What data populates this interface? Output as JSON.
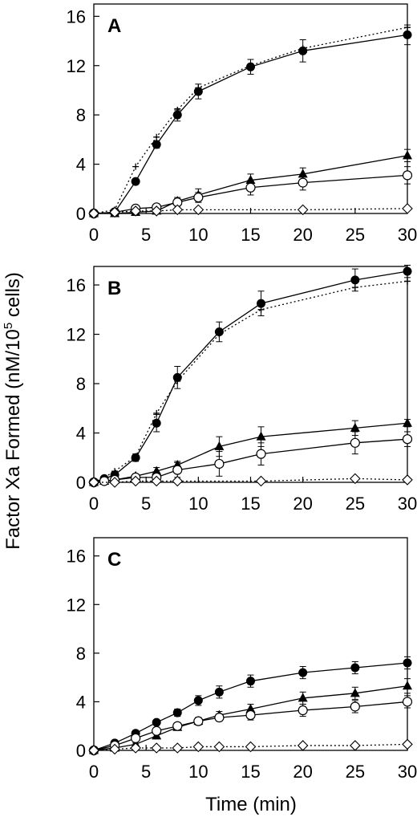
{
  "figure": {
    "ylabel_main": "Factor Xa Formed (nM/10",
    "ylabel_sup": "5",
    "ylabel_tail": " cells)",
    "xlabel": "Time (min)"
  },
  "chart_data": [
    {
      "type": "line",
      "panel": "A",
      "xlabel": "Time (min)",
      "ylabel": "Factor Xa Formed (nM/10^5 cells)",
      "xlim": [
        0,
        30
      ],
      "ylim": [
        0,
        17
      ],
      "xticks": [
        0,
        5,
        10,
        15,
        20,
        25,
        30
      ],
      "yticks": [
        0,
        4,
        8,
        12,
        16
      ],
      "grid": false,
      "series": [
        {
          "marker": "filled-circle",
          "line": "solid",
          "x": [
            0,
            2,
            4,
            6,
            8,
            10,
            15,
            20,
            30
          ],
          "y": [
            0,
            0.1,
            2.6,
            5.6,
            8.0,
            9.9,
            11.9,
            13.2,
            14.5
          ],
          "err": [
            0,
            0.1,
            0.2,
            0.3,
            0.5,
            0.6,
            0.6,
            0.9,
            0.8
          ]
        },
        {
          "marker": "plus",
          "line": "dotted",
          "x": [
            0,
            2,
            4,
            6,
            8,
            10,
            15,
            20,
            30
          ],
          "y": [
            0,
            0.3,
            3.8,
            6.2,
            8.4,
            10.2,
            12.0,
            13.4,
            15.1
          ],
          "err": [
            0,
            0,
            0,
            0,
            0,
            0,
            0,
            0,
            0
          ]
        },
        {
          "marker": "filled-triangle",
          "line": "solid",
          "x": [
            0,
            2,
            4,
            6,
            8,
            10,
            15,
            20,
            30
          ],
          "y": [
            0,
            0,
            0.1,
            0.2,
            1.0,
            1.5,
            2.7,
            3.2,
            4.7
          ],
          "err": [
            0,
            0,
            0,
            0.1,
            0.3,
            0.5,
            0.5,
            0.5,
            0.5
          ]
        },
        {
          "marker": "open-circle",
          "line": "solid",
          "x": [
            0,
            2,
            4,
            6,
            8,
            10,
            15,
            20,
            30
          ],
          "y": [
            0,
            0.1,
            0.4,
            0.5,
            0.9,
            1.3,
            2.1,
            2.5,
            3.1
          ],
          "err": [
            0,
            0,
            0,
            0.2,
            0.3,
            0.4,
            0.6,
            0.6,
            0.7
          ]
        },
        {
          "marker": "open-diamond",
          "line": "dotted",
          "x": [
            0,
            2,
            4,
            6,
            8,
            10,
            20,
            30
          ],
          "y": [
            0,
            0.1,
            0.2,
            0.2,
            0.3,
            0.3,
            0.3,
            0.4
          ],
          "err": [
            0,
            0,
            0,
            0,
            0,
            0,
            0,
            0
          ]
        }
      ]
    },
    {
      "type": "line",
      "panel": "B",
      "xlabel": "Time (min)",
      "ylabel": "Factor Xa Formed (nM/10^5 cells)",
      "xlim": [
        0,
        30
      ],
      "ylim": [
        0,
        17.5
      ],
      "xticks": [
        0,
        5,
        10,
        15,
        20,
        25,
        30
      ],
      "yticks": [
        0,
        4,
        8,
        12,
        16
      ],
      "grid": false,
      "series": [
        {
          "marker": "filled-circle",
          "line": "solid",
          "x": [
            0,
            1,
            2,
            4,
            6,
            8,
            12,
            16,
            25,
            30
          ],
          "y": [
            0,
            0.3,
            0.6,
            2.0,
            4.8,
            8.5,
            12.2,
            14.5,
            16.4,
            17.1
          ],
          "err": [
            0,
            0,
            0.2,
            0.3,
            0.7,
            0.9,
            0.8,
            1.0,
            0.9,
            0.5
          ]
        },
        {
          "marker": "plus",
          "line": "dotted",
          "x": [
            0,
            1,
            2,
            4,
            6,
            8,
            12,
            16,
            25,
            30
          ],
          "y": [
            0,
            0.4,
            0.9,
            2.1,
            5.6,
            8.2,
            12.0,
            14.0,
            15.8,
            16.3
          ],
          "err": [
            0,
            0,
            0,
            0,
            0,
            0,
            0,
            0,
            0,
            0
          ]
        },
        {
          "marker": "filled-triangle",
          "line": "solid",
          "x": [
            0,
            1,
            2,
            4,
            6,
            8,
            12,
            16,
            25,
            30
          ],
          "y": [
            0,
            0.1,
            0.2,
            0.5,
            0.9,
            1.4,
            2.9,
            3.7,
            4.4,
            4.8
          ],
          "err": [
            0,
            0,
            0,
            0.1,
            0.3,
            0.3,
            0.8,
            0.8,
            0.6,
            0.3
          ]
        },
        {
          "marker": "open-circle",
          "line": "solid",
          "x": [
            0,
            1,
            2,
            4,
            6,
            8,
            12,
            16,
            25,
            30
          ],
          "y": [
            0,
            0.1,
            0.2,
            0.4,
            0.4,
            1.0,
            1.5,
            2.3,
            3.2,
            3.5
          ],
          "err": [
            0,
            0,
            0,
            0.1,
            0.4,
            0.6,
            1.0,
            0.9,
            0.9,
            0.6
          ]
        },
        {
          "marker": "open-diamond",
          "line": "dotted",
          "x": [
            0,
            2,
            4,
            6,
            8,
            16,
            25,
            30
          ],
          "y": [
            0,
            0,
            0.1,
            0.1,
            0.1,
            0.1,
            0.3,
            0.2
          ],
          "err": [
            0,
            0,
            0,
            0,
            0,
            0,
            0,
            0
          ]
        }
      ]
    },
    {
      "type": "line",
      "panel": "C",
      "xlabel": "Time (min)",
      "ylabel": "Factor Xa Formed (nM/10^5 cells)",
      "xlim": [
        0,
        30
      ],
      "ylim": [
        0,
        17.5
      ],
      "xticks": [
        0,
        5,
        10,
        15,
        20,
        25,
        30
      ],
      "yticks": [
        0,
        4,
        8,
        12,
        16
      ],
      "grid": false,
      "series": [
        {
          "marker": "filled-circle",
          "line": "solid",
          "x": [
            0,
            2,
            4,
            6,
            8,
            10,
            12,
            15,
            20,
            25,
            30
          ],
          "y": [
            0,
            0.6,
            1.4,
            2.3,
            3.1,
            4.1,
            4.8,
            5.7,
            6.4,
            6.8,
            7.2
          ],
          "err": [
            0,
            0.1,
            0.2,
            0.2,
            0.3,
            0.4,
            0.5,
            0.5,
            0.5,
            0.5,
            0.5
          ]
        },
        {
          "marker": "filled-triangle",
          "line": "solid",
          "x": [
            0,
            2,
            4,
            6,
            8,
            10,
            12,
            15,
            20,
            25,
            30
          ],
          "y": [
            0,
            0.2,
            0.5,
            1.2,
            1.9,
            2.4,
            2.9,
            3.4,
            4.3,
            4.7,
            5.3
          ],
          "err": [
            0,
            0,
            0.1,
            0.2,
            0.2,
            0.3,
            0.3,
            0.4,
            0.5,
            0.5,
            0.6
          ]
        },
        {
          "marker": "open-circle",
          "line": "solid",
          "x": [
            0,
            2,
            4,
            6,
            8,
            10,
            12,
            15,
            20,
            25,
            30
          ],
          "y": [
            0,
            0.4,
            1.0,
            1.6,
            2.0,
            2.4,
            2.7,
            2.9,
            3.3,
            3.6,
            4.0
          ],
          "err": [
            0,
            0.1,
            0.1,
            0.2,
            0.2,
            0.3,
            0.3,
            0.4,
            0.5,
            0.5,
            0.5
          ]
        },
        {
          "marker": "open-diamond",
          "line": "dotted",
          "x": [
            0,
            2,
            4,
            6,
            8,
            10,
            12,
            15,
            20,
            25,
            30
          ],
          "y": [
            0,
            0.1,
            0.2,
            0.2,
            0.2,
            0.3,
            0.3,
            0.3,
            0.4,
            0.4,
            0.5
          ],
          "err": [
            0,
            0,
            0,
            0,
            0,
            0,
            0,
            0,
            0,
            0,
            0
          ]
        }
      ]
    }
  ]
}
